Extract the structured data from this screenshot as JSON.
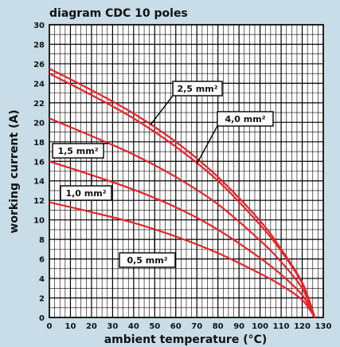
{
  "chart_data": {
    "type": "line",
    "title": "diagram CDC 10 poles",
    "xlabel": "ambient temperature (°C)",
    "ylabel": "working current (A)",
    "xlim": [
      0,
      130
    ],
    "ylim": [
      0,
      30
    ],
    "x_ticks": [
      "0",
      "10",
      "20",
      "30",
      "40",
      "50",
      "60",
      "70",
      "80",
      "90",
      "100",
      "110",
      "120",
      "130"
    ],
    "y_ticks": [
      "0",
      "2",
      "4",
      "6",
      "8",
      "10",
      "12",
      "14",
      "16",
      "18",
      "20",
      "22",
      "24",
      "26",
      "28",
      "30"
    ],
    "grid": true,
    "series_color": "#e8232a",
    "series": [
      {
        "name": "2,5 mm²",
        "x": [
          0,
          20,
          40,
          60,
          80,
          100,
          110,
          120,
          126
        ],
        "y": [
          25.5,
          23.3,
          20.9,
          18.0,
          14.4,
          9.9,
          7.0,
          3.6,
          0
        ]
      },
      {
        "name": "4,0 mm²",
        "x": [
          0,
          20,
          40,
          60,
          80,
          100,
          110,
          120,
          126
        ],
        "y": [
          25.0,
          22.8,
          20.4,
          17.5,
          14.0,
          9.5,
          6.8,
          3.5,
          0
        ]
      },
      {
        "name": "1,5 mm²",
        "x": [
          0,
          20,
          40,
          60,
          80,
          100,
          110,
          120,
          126
        ],
        "y": [
          20.4,
          18.6,
          16.7,
          14.4,
          11.6,
          7.9,
          5.7,
          3.0,
          0
        ]
      },
      {
        "name": "1,0 mm²",
        "x": [
          0,
          20,
          40,
          60,
          80,
          100,
          110,
          120,
          126
        ],
        "y": [
          16.0,
          14.6,
          13.1,
          11.3,
          9.0,
          6.1,
          4.4,
          2.3,
          0
        ]
      },
      {
        "name": "0,5 mm²",
        "x": [
          0,
          20,
          40,
          60,
          80,
          100,
          110,
          120,
          126
        ],
        "y": [
          11.8,
          10.8,
          9.7,
          8.3,
          6.6,
          4.5,
          3.3,
          1.8,
          0
        ]
      }
    ]
  }
}
